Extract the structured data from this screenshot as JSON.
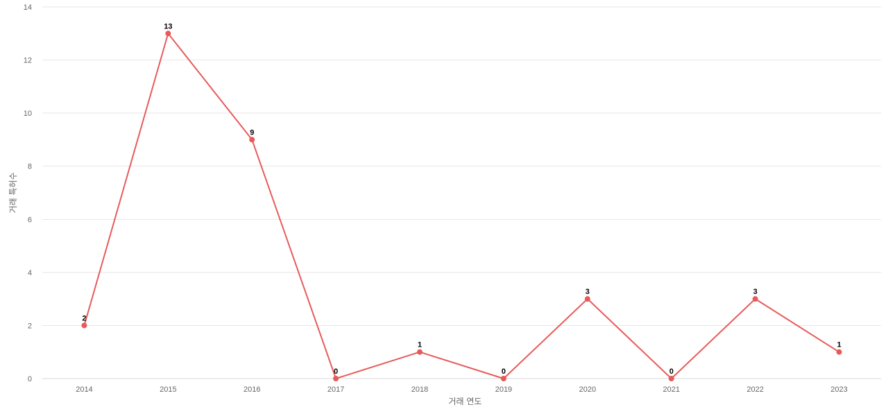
{
  "chart_data": {
    "type": "line",
    "title": "",
    "xlabel": "거래 연도",
    "ylabel": "거래 특허수",
    "categories": [
      "2014",
      "2015",
      "2016",
      "2017",
      "2018",
      "2019",
      "2020",
      "2021",
      "2022",
      "2023"
    ],
    "series": [
      {
        "values": [
          2,
          13,
          9,
          0,
          1,
          0,
          3,
          0,
          3,
          1
        ],
        "color": "#e85a5a"
      }
    ],
    "ylim": [
      0,
      14
    ],
    "yticks": [
      0,
      2,
      4,
      6,
      8,
      10,
      12,
      14
    ],
    "grid": true,
    "data_labels": true,
    "legend": "none"
  }
}
